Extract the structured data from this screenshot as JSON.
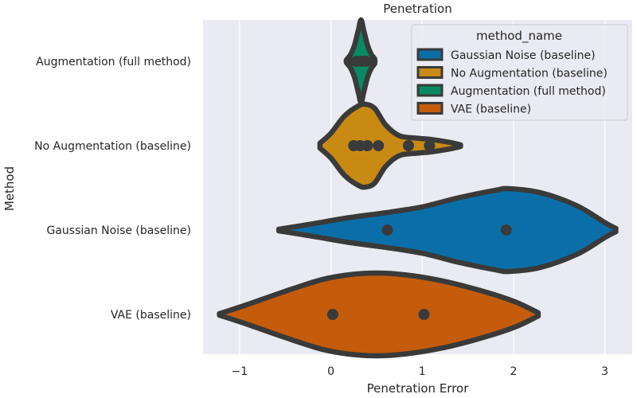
{
  "chart_data": {
    "type": "violin",
    "orientation": "horizontal",
    "title": "Penetration",
    "xlabel": "Penetration Error",
    "ylabel": "Method",
    "xlim": [
      -1.4,
      3.3
    ],
    "xticks": [
      -1,
      0,
      1,
      2,
      3
    ],
    "xtick_labels": [
      "−1",
      "0",
      "1",
      "2",
      "3"
    ],
    "grid": true,
    "legend": {
      "title": "method_name",
      "placement": "top-right",
      "entries": [
        {
          "label": "Gaussian Noise (baseline)",
          "color": "#0a6fa8"
        },
        {
          "label": "No Augmentation (baseline)",
          "color": "#c98a14"
        },
        {
          "label": "Augmentation (full method)",
          "color": "#078a63"
        },
        {
          "label": "VAE (baseline)",
          "color": "#c45c0c"
        }
      ]
    },
    "categories": [
      "Augmentation (full method)",
      "No Augmentation (baseline)",
      "Gaussian Noise (baseline)",
      "VAE (baseline)"
    ],
    "series": [
      {
        "name": "Augmentation (full method)",
        "color": "#078a63",
        "points": [
          0.2,
          0.28,
          0.33,
          0.38,
          0.45
        ],
        "density": [
          [
            0.18,
            0.06
          ],
          [
            0.22,
            0.18
          ],
          [
            0.26,
            0.4
          ],
          [
            0.3,
            0.75
          ],
          [
            0.33,
            1.0
          ],
          [
            0.36,
            0.75
          ],
          [
            0.4,
            0.4
          ],
          [
            0.44,
            0.18
          ],
          [
            0.48,
            0.06
          ]
        ]
      },
      {
        "name": "No Augmentation (baseline)",
        "color": "#c98a14",
        "points": [
          0.25,
          0.32,
          0.4,
          0.52,
          0.85,
          1.08
        ],
        "density": [
          [
            -0.12,
            0.06
          ],
          [
            0.0,
            0.3
          ],
          [
            0.15,
            0.72
          ],
          [
            0.3,
            0.96
          ],
          [
            0.38,
            1.0
          ],
          [
            0.48,
            0.9
          ],
          [
            0.6,
            0.5
          ],
          [
            0.75,
            0.24
          ],
          [
            0.95,
            0.18
          ],
          [
            1.1,
            0.15
          ],
          [
            1.3,
            0.08
          ],
          [
            1.42,
            0.02
          ]
        ]
      },
      {
        "name": "Gaussian Noise (baseline)",
        "color": "#0a6fa8",
        "points": [
          0.62,
          1.92
        ],
        "density": [
          [
            -0.57,
            0.02
          ],
          [
            -0.2,
            0.15
          ],
          [
            0.2,
            0.3
          ],
          [
            0.6,
            0.42
          ],
          [
            1.0,
            0.56
          ],
          [
            1.4,
            0.78
          ],
          [
            1.8,
            0.96
          ],
          [
            1.95,
            1.0
          ],
          [
            2.3,
            0.9
          ],
          [
            2.7,
            0.58
          ],
          [
            3.0,
            0.18
          ],
          [
            3.12,
            0.04
          ]
        ]
      },
      {
        "name": "VAE (baseline)",
        "color": "#c45c0c",
        "points": [
          0.02,
          1.02
        ],
        "density": [
          [
            -1.22,
            0.02
          ],
          [
            -0.9,
            0.25
          ],
          [
            -0.5,
            0.56
          ],
          [
            -0.1,
            0.84
          ],
          [
            0.2,
            0.96
          ],
          [
            0.5,
            1.0
          ],
          [
            0.8,
            0.96
          ],
          [
            1.2,
            0.82
          ],
          [
            1.6,
            0.6
          ],
          [
            2.0,
            0.32
          ],
          [
            2.27,
            0.04
          ]
        ]
      }
    ]
  }
}
